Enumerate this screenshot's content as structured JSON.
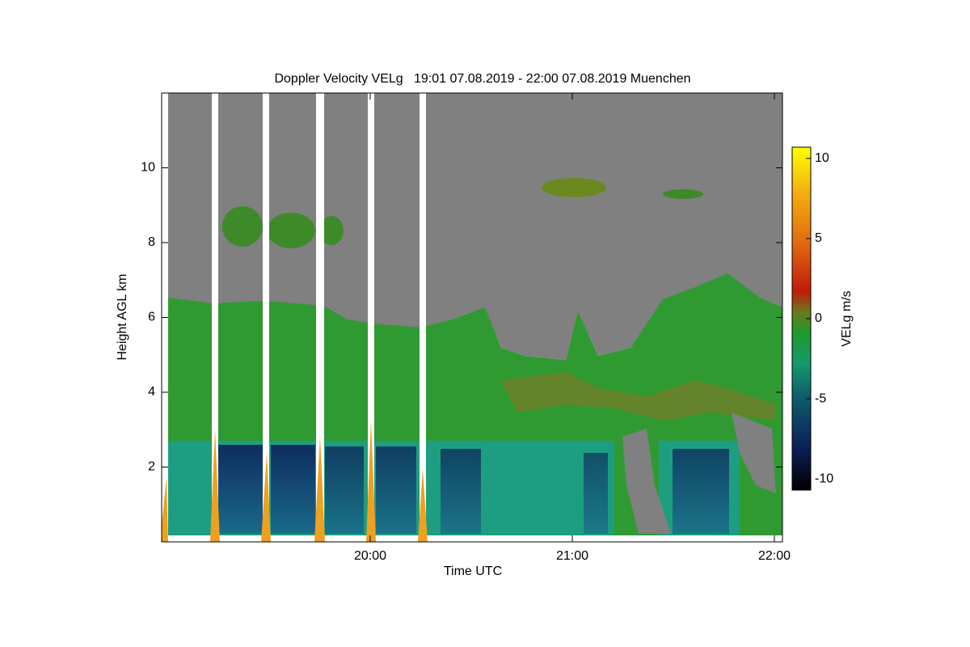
{
  "chart_data": {
    "type": "heatmap",
    "title": "Doppler Velocity VELg   19:01 07.08.2019 - 22:00 07.08.2019 Muenchen",
    "x_label": "Time UTC",
    "y_label": "Height AGL km",
    "xlim": [
      18.968,
      22.04
    ],
    "xticks": [
      {
        "value": 20,
        "label": "20:00"
      },
      {
        "value": 21,
        "label": "21:00"
      },
      {
        "value": 22,
        "label": "22:00"
      }
    ],
    "ylim": [
      0,
      12
    ],
    "yticks": [
      2,
      4,
      6,
      8,
      10
    ],
    "colorbar": {
      "label": "VELg m/s",
      "clim": [
        -10.7,
        10.7
      ],
      "ticks": [
        -10,
        -5,
        0,
        5,
        10
      ]
    }
  }
}
